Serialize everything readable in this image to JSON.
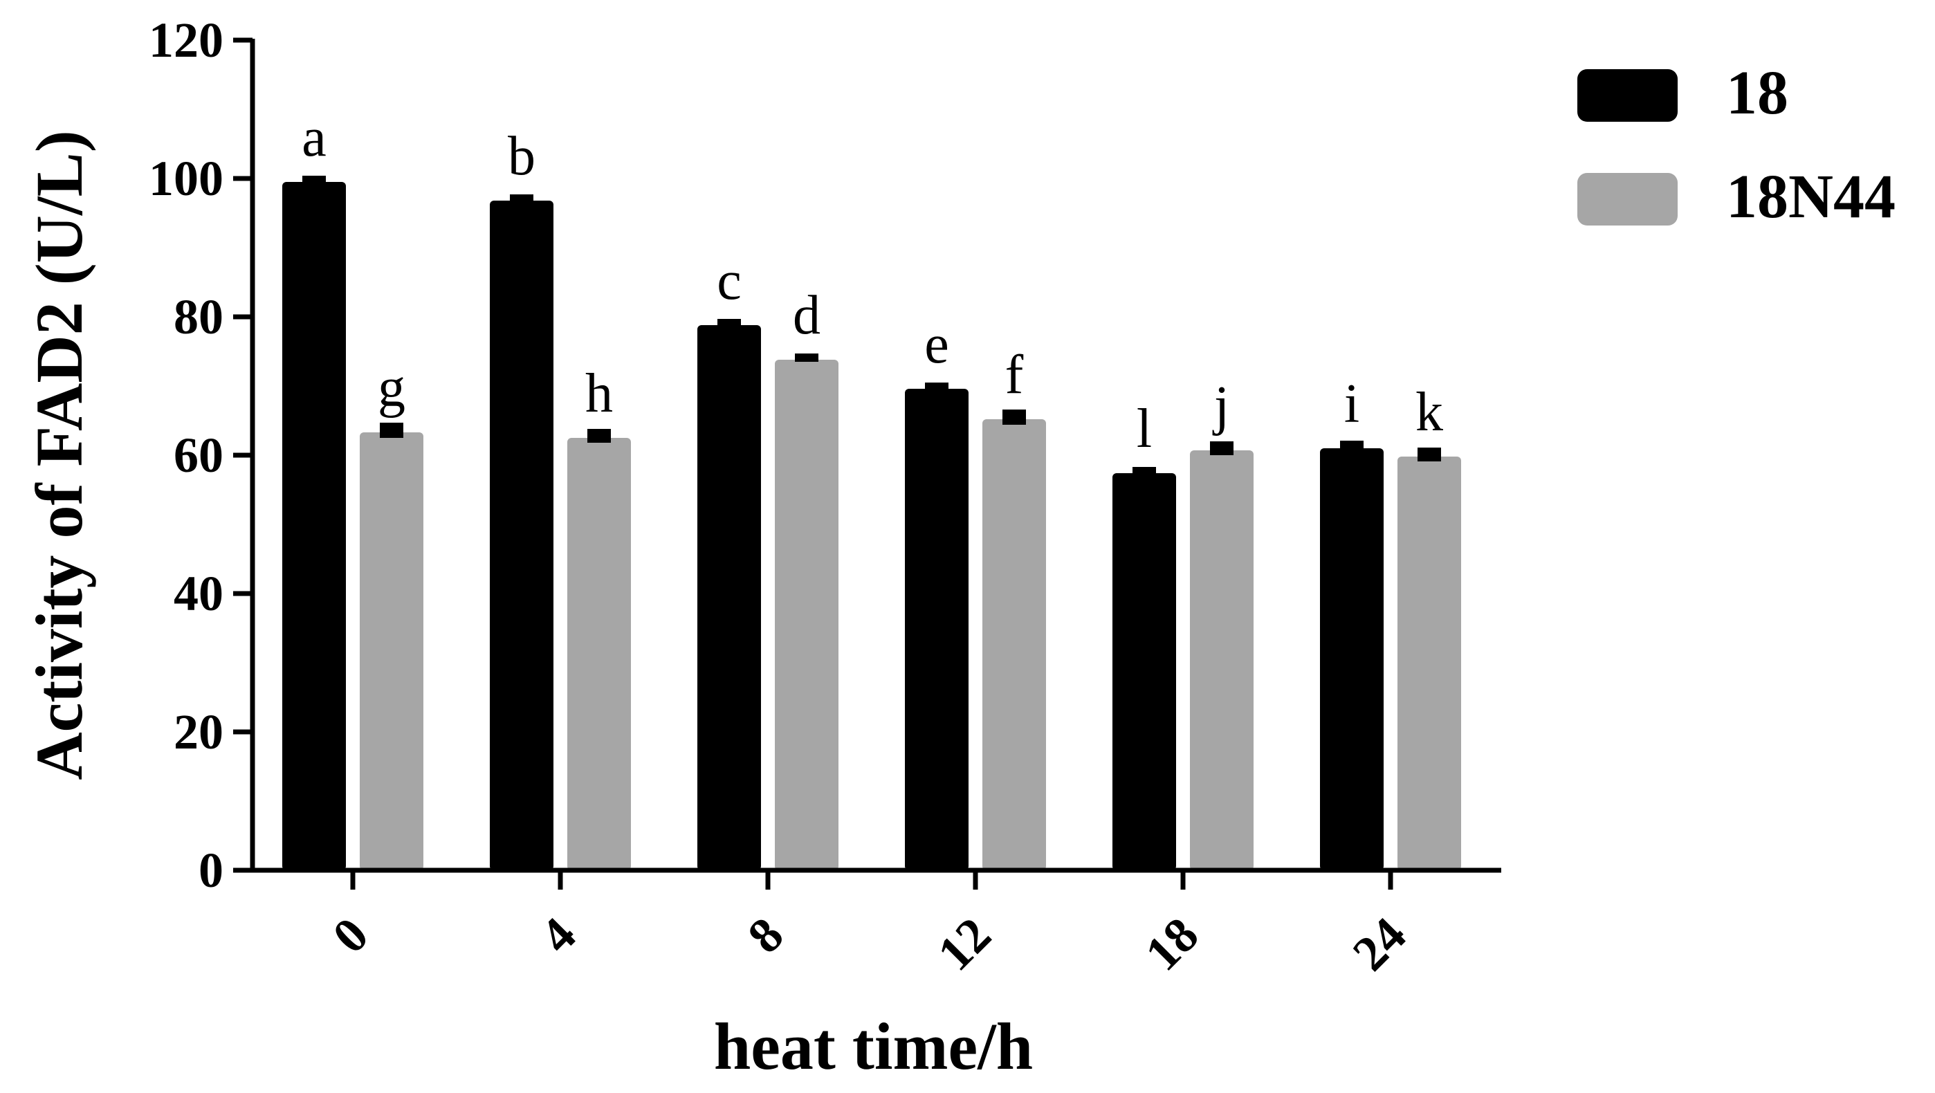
{
  "chart_data": {
    "type": "bar",
    "title": "",
    "xlabel": "heat time/h",
    "ylabel": "Activity of FAD2 (U/L)",
    "categories": [
      "0",
      "4",
      "8",
      "12",
      "18",
      "24"
    ],
    "ylim": [
      0,
      120
    ],
    "yticks": [
      "0",
      "20",
      "40",
      "60",
      "80",
      "100",
      "120"
    ],
    "grid": false,
    "legend_position": "top-right",
    "series": [
      {
        "name": "18",
        "color": "#000000",
        "values": [
          99.5,
          96.8,
          78.8,
          69.6,
          57.4,
          61.0
        ],
        "errors": [
          0.3,
          0.3,
          0.3,
          0.3,
          0.3,
          0.5
        ],
        "significance_letters": [
          "a",
          "b",
          "c",
          "e",
          "l",
          "i"
        ]
      },
      {
        "name": "18N44",
        "color": "#a6a6a6",
        "values": [
          63.3,
          62.5,
          73.8,
          65.2,
          60.7,
          59.8
        ],
        "errors": [
          0.8,
          0.7,
          0.3,
          0.8,
          0.7,
          0.7
        ],
        "significance_letters": [
          "g",
          "h",
          "d",
          "f",
          "j",
          "k"
        ]
      }
    ]
  }
}
